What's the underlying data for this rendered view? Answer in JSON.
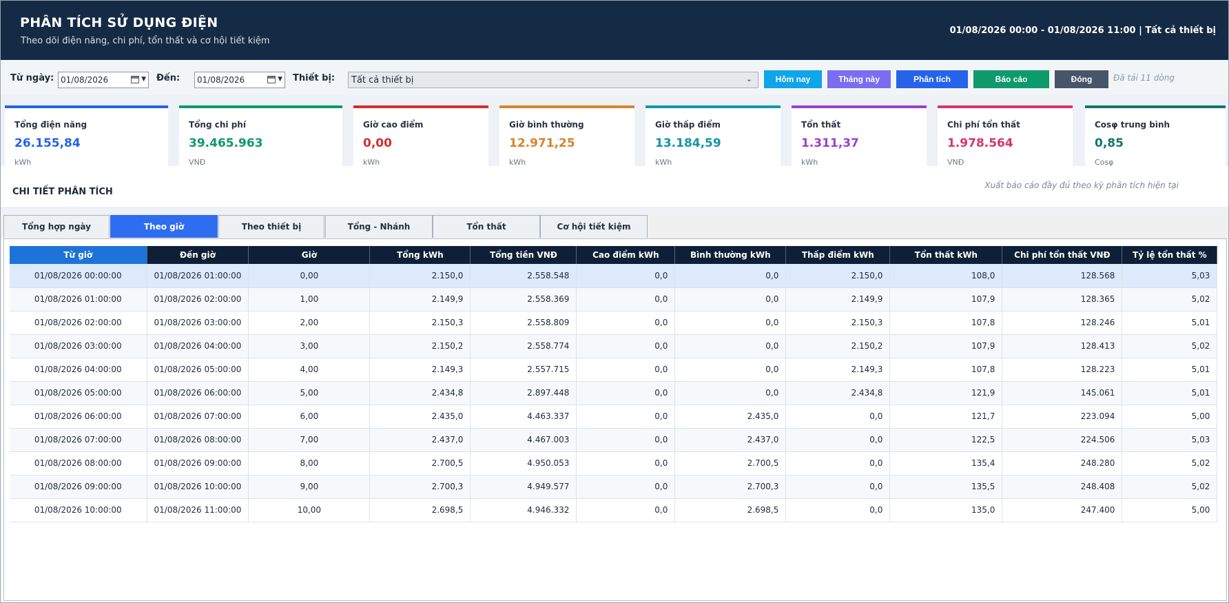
{
  "header": {
    "title": "PHÂN TÍCH SỬ DỤNG ĐIỆN",
    "subtitle": "Theo dõi điện năng, chi phí, tổn thất và cơ hội tiết kiệm",
    "range": "01/08/2026 00:00 - 01/08/2026 11:00  |  Tất cả thiết bị"
  },
  "filters": {
    "from_label": "Từ ngày:",
    "from_value": "01/08/2026",
    "to_label": "Đến:",
    "to_value": "01/08/2026",
    "device_label": "Thiết bị:",
    "device_value": "Tất cả thiết bị",
    "buttons": {
      "today": "Hôm nay",
      "month": "Tháng này",
      "analyze": "Phân tích",
      "report": "Báo cáo",
      "close": "Đóng"
    },
    "loaded": "Đã tải 11 dòng"
  },
  "kpis": [
    {
      "title": "Tổng điện năng",
      "value": "26.155,84",
      "unit": "kWh",
      "color": "#2563eb"
    },
    {
      "title": "Tổng chi phí",
      "value": "39.465.963",
      "unit": "VNĐ",
      "color": "#0e9a6a"
    },
    {
      "title": "Giờ cao điểm",
      "value": "0,00",
      "unit": "kWh",
      "color": "#d32f2f"
    },
    {
      "title": "Giờ bình thường",
      "value": "12.971,25",
      "unit": "kWh",
      "color": "#d9822b"
    },
    {
      "title": "Giờ thấp điểm",
      "value": "13.184,59",
      "unit": "kWh",
      "color": "#1297a5"
    },
    {
      "title": "Tổn thất",
      "value": "1.311,37",
      "unit": "kWh",
      "color": "#9b3fd1"
    },
    {
      "title": "Chi phí tổn thất",
      "value": "1.978.564",
      "unit": "VNĐ",
      "color": "#d6336c"
    },
    {
      "title": "Cosφ trung bình",
      "value": "0,85",
      "unit": "Cosφ",
      "color": "#0f766e"
    }
  ],
  "section": {
    "title": "CHI TIẾT PHÂN TÍCH",
    "note": "Xuất báo cáo đầy đủ theo kỳ phân tích hiện tại"
  },
  "tabs": [
    "Tổng hợp ngày",
    "Theo giờ",
    "Theo thiết bị",
    "Tổng - Nhánh",
    "Tổn thất",
    "Cơ hội tiết kiệm"
  ],
  "active_tab": "Theo giờ",
  "table": {
    "columns": [
      "Từ giờ",
      "Đến giờ",
      "Giờ",
      "Tổng kWh",
      "Tổng tiền VNĐ",
      "Cao điểm kWh",
      "Bình thường kWh",
      "Thấp điểm kWh",
      "Tổn thất kWh",
      "Chi phí tổn thất VNĐ",
      "Tỷ lệ tổn thất %"
    ],
    "rows": [
      [
        "01/08/2026 00:00:00",
        "01/08/2026 01:00:00",
        "0,00",
        "2.150,0",
        "2.558.548",
        "0,0",
        "0,0",
        "2.150,0",
        "108,0",
        "128.568",
        "5,03"
      ],
      [
        "01/08/2026 01:00:00",
        "01/08/2026 02:00:00",
        "1,00",
        "2.149,9",
        "2.558.369",
        "0,0",
        "0,0",
        "2.149,9",
        "107,9",
        "128.365",
        "5,02"
      ],
      [
        "01/08/2026 02:00:00",
        "01/08/2026 03:00:00",
        "2,00",
        "2.150,3",
        "2.558.809",
        "0,0",
        "0,0",
        "2.150,3",
        "107,8",
        "128.246",
        "5,01"
      ],
      [
        "01/08/2026 03:00:00",
        "01/08/2026 04:00:00",
        "3,00",
        "2.150,2",
        "2.558.774",
        "0,0",
        "0,0",
        "2.150,2",
        "107,9",
        "128.413",
        "5,02"
      ],
      [
        "01/08/2026 04:00:00",
        "01/08/2026 05:00:00",
        "4,00",
        "2.149,3",
        "2.557.715",
        "0,0",
        "0,0",
        "2.149,3",
        "107,8",
        "128.223",
        "5,01"
      ],
      [
        "01/08/2026 05:00:00",
        "01/08/2026 06:00:00",
        "5,00",
        "2.434,8",
        "2.897.448",
        "0,0",
        "0,0",
        "2.434,8",
        "121,9",
        "145.061",
        "5,01"
      ],
      [
        "01/08/2026 06:00:00",
        "01/08/2026 07:00:00",
        "6,00",
        "2.435,0",
        "4.463.337",
        "0,0",
        "2.435,0",
        "0,0",
        "121,7",
        "223.094",
        "5,00"
      ],
      [
        "01/08/2026 07:00:00",
        "01/08/2026 08:00:00",
        "7,00",
        "2.437,0",
        "4.467.003",
        "0,0",
        "2.437,0",
        "0,0",
        "122,5",
        "224.506",
        "5,03"
      ],
      [
        "01/08/2026 08:00:00",
        "01/08/2026 09:00:00",
        "8,00",
        "2.700,5",
        "4.950.053",
        "0,0",
        "2.700,5",
        "0,0",
        "135,4",
        "248.280",
        "5,02"
      ],
      [
        "01/08/2026 09:00:00",
        "01/08/2026 10:00:00",
        "9,00",
        "2.700,3",
        "4.949.577",
        "0,0",
        "2.700,3",
        "0,0",
        "135,5",
        "248.408",
        "5,02"
      ],
      [
        "01/08/2026 10:00:00",
        "01/08/2026 11:00:00",
        "10,00",
        "2.698,5",
        "4.946.332",
        "0,0",
        "2.698,5",
        "0,0",
        "135,0",
        "247.400",
        "5,00"
      ]
    ]
  }
}
